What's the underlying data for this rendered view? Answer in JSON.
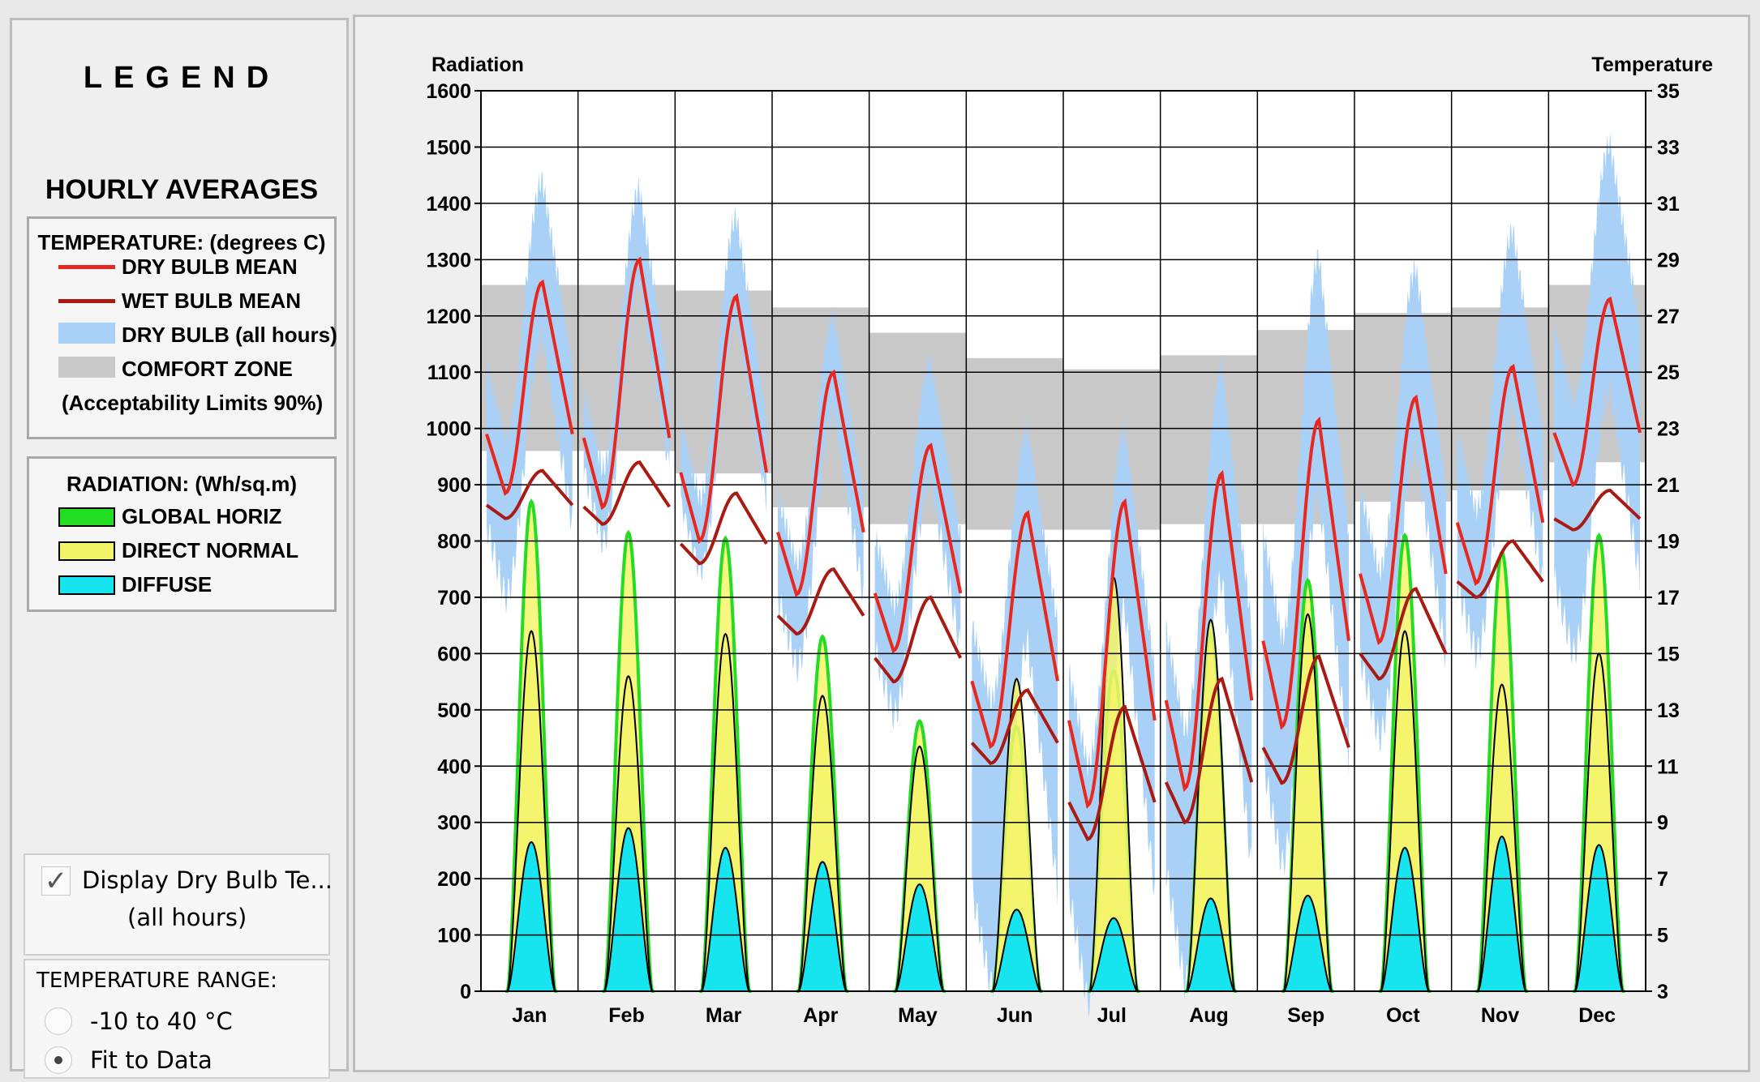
{
  "legend": {
    "title": "LEGEND",
    "subtitle": "HOURLY AVERAGES",
    "temperature": {
      "heading": "TEMPERATURE: (degrees C)",
      "items": [
        {
          "label": "DRY BULB MEAN",
          "color": "#e8281e"
        },
        {
          "label": "WET BULB MEAN",
          "color": "#a81a12"
        },
        {
          "label": "DRY BULB (all hours)",
          "color": "#a9d1f7"
        },
        {
          "label": "COMFORT ZONE",
          "color": "#c8c8c8"
        }
      ],
      "note": "(Acceptability Limits 90%)"
    },
    "radiation": {
      "heading": "RADIATION: (Wh/sq.m)",
      "items": [
        {
          "label": "GLOBAL HORIZ",
          "color": "#22dd22"
        },
        {
          "label": "DIRECT NORMAL",
          "color": "#f4f46a"
        },
        {
          "label": "DIFFUSE",
          "color": "#16e4ee"
        }
      ]
    }
  },
  "controls": {
    "display_checkbox_label": "Display Dry Bulb Te...",
    "display_checkbox_sub": "(all hours)",
    "display_checked": true,
    "range_heading": "TEMPERATURE RANGE:",
    "range_options": [
      "-10 to 40 °C",
      "Fit to Data"
    ],
    "range_selected": "Fit to Data"
  },
  "chart_data": {
    "type": "area",
    "left_axis_label": "Radiation",
    "right_axis_label": "Temperature",
    "left_ylim": [
      0,
      1600
    ],
    "right_ylim": [
      3,
      35
    ],
    "left_ticks": [
      0,
      100,
      200,
      300,
      400,
      500,
      600,
      700,
      800,
      900,
      1000,
      1100,
      1200,
      1300,
      1400,
      1500,
      1600
    ],
    "right_ticks": [
      3,
      5,
      7,
      9,
      11,
      13,
      15,
      17,
      19,
      21,
      23,
      25,
      27,
      29,
      31,
      33,
      35
    ],
    "categories": [
      "Jan",
      "Feb",
      "Mar",
      "Apr",
      "May",
      "Jun",
      "Jul",
      "Aug",
      "Sep",
      "Oct",
      "Nov",
      "Dec"
    ],
    "x_description": "hour of day (0-23) within each month",
    "radiation_peak": {
      "global_horiz": [
        870,
        815,
        805,
        630,
        480,
        470,
        570,
        635,
        730,
        810,
        780,
        810
      ],
      "direct_normal": [
        640,
        560,
        635,
        525,
        435,
        555,
        735,
        660,
        670,
        640,
        545,
        600
      ],
      "diffuse": [
        265,
        290,
        255,
        230,
        190,
        145,
        130,
        165,
        170,
        255,
        275,
        260
      ]
    },
    "comfort_zone": {
      "lower_temp": [
        22.2,
        22.2,
        21.4,
        20.2,
        19.6,
        19.4,
        19.4,
        19.6,
        19.6,
        20.4,
        20.8,
        21.8
      ],
      "upper_temp": [
        28.1,
        28.1,
        27.9,
        27.3,
        26.4,
        25.5,
        25.1,
        25.6,
        26.5,
        27.1,
        27.3,
        28.1
      ]
    },
    "dry_bulb_mean": {
      "min_temp": [
        20.7,
        20.2,
        19.0,
        17.1,
        15.1,
        11.7,
        9.6,
        10.2,
        12.4,
        15.4,
        17.5,
        21.0
      ],
      "max_temp": [
        28.2,
        29.0,
        27.7,
        25.0,
        22.4,
        20.0,
        20.4,
        21.4,
        23.3,
        24.1,
        25.2,
        27.6
      ]
    },
    "wet_bulb_mean": {
      "min_temp": [
        19.8,
        19.6,
        18.2,
        15.7,
        14.0,
        11.1,
        8.4,
        9.0,
        10.4,
        14.1,
        17.0,
        19.4
      ],
      "max_temp": [
        21.5,
        21.8,
        20.7,
        18.0,
        17.0,
        13.7,
        13.1,
        14.1,
        14.9,
        17.3,
        19.0,
        20.8
      ]
    },
    "dry_bulb_all_hours": {
      "min_temp": [
        17.0,
        19.0,
        18.0,
        14.5,
        12.8,
        3.2,
        2.6,
        3.3,
        7.5,
        12.0,
        15.0,
        15.0
      ],
      "max_temp": [
        31.8,
        31.5,
        30.5,
        27.0,
        25.4,
        23.0,
        23.0,
        25.2,
        29.1,
        28.7,
        30.0,
        33.1
      ]
    },
    "grid": true
  }
}
